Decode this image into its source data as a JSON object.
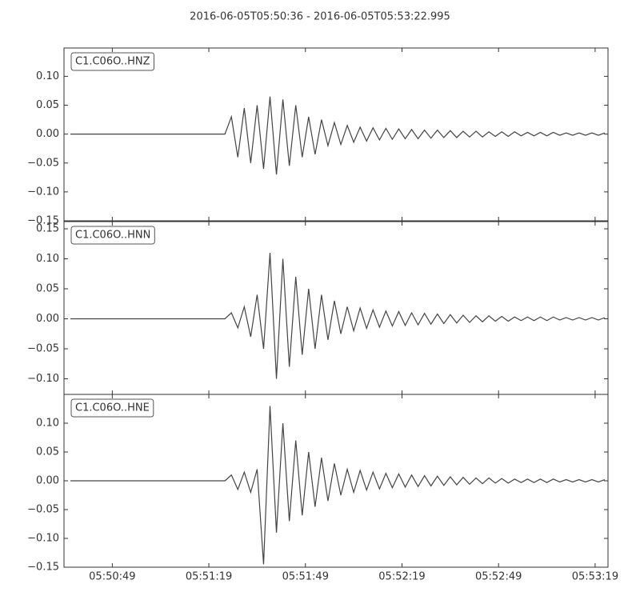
{
  "chart_data": {
    "type": "line",
    "title": "2016-06-05T05:50:36  -  2016-06-05T05:53:22.995",
    "xlim": [
      "05:50:34",
      "05:53:23"
    ],
    "xticks": [
      "05:50:49",
      "05:51:19",
      "05:51:49",
      "05:52:19",
      "05:52:49",
      "05:53:19"
    ],
    "x": [
      "05:50:36",
      "05:50:38",
      "05:50:40",
      "05:50:42",
      "05:50:44",
      "05:50:46",
      "05:50:48",
      "05:50:50",
      "05:50:52",
      "05:50:54",
      "05:50:56",
      "05:50:58",
      "05:51:00",
      "05:51:02",
      "05:51:04",
      "05:51:06",
      "05:51:08",
      "05:51:10",
      "05:51:12",
      "05:51:14",
      "05:51:16",
      "05:51:18",
      "05:51:20",
      "05:51:22",
      "05:51:24",
      "05:51:26",
      "05:51:28",
      "05:51:30",
      "05:51:32",
      "05:51:34",
      "05:51:36",
      "05:51:38",
      "05:51:40",
      "05:51:42",
      "05:51:44",
      "05:51:46",
      "05:51:48",
      "05:51:50",
      "05:51:52",
      "05:51:54",
      "05:51:56",
      "05:51:58",
      "05:52:00",
      "05:52:02",
      "05:52:04",
      "05:52:06",
      "05:52:08",
      "05:52:10",
      "05:52:12",
      "05:52:14",
      "05:52:16",
      "05:52:18",
      "05:52:20",
      "05:52:22",
      "05:52:24",
      "05:52:26",
      "05:52:28",
      "05:52:30",
      "05:52:32",
      "05:52:34",
      "05:52:36",
      "05:52:38",
      "05:52:40",
      "05:52:42",
      "05:52:44",
      "05:52:46",
      "05:52:48",
      "05:52:50",
      "05:52:52",
      "05:52:54",
      "05:52:56",
      "05:52:58",
      "05:53:00",
      "05:53:02",
      "05:53:04",
      "05:53:06",
      "05:53:08",
      "05:53:10",
      "05:53:12",
      "05:53:14",
      "05:53:16",
      "05:53:18",
      "05:53:20",
      "05:53:22"
    ],
    "series": [
      {
        "name": "C1.C06O..HNZ",
        "color": "#444444",
        "ylim": [
          -0.15,
          0.149
        ],
        "yticks": [
          {
            "value": -0.15,
            "label": "−0.15"
          },
          {
            "value": -0.1,
            "label": "−0.10"
          },
          {
            "value": -0.05,
            "label": "−0.05"
          },
          {
            "value": 0,
            "label": "0.00"
          },
          {
            "value": 0.05,
            "label": "0.05"
          },
          {
            "value": 0.1,
            "label": "0.10"
          }
        ],
        "values": [
          0,
          0,
          0,
          0,
          0,
          0,
          0,
          0,
          0,
          0,
          0,
          0,
          0,
          0,
          0,
          0,
          0,
          0,
          0,
          0,
          0,
          0,
          0,
          0,
          0,
          0.03,
          -0.04,
          0.045,
          -0.05,
          0.05,
          -0.06,
          0.065,
          -0.07,
          0.06,
          -0.055,
          0.05,
          -0.04,
          0.03,
          -0.035,
          0.025,
          -0.02,
          0.02,
          -0.018,
          0.015,
          -0.014,
          0.012,
          -0.012,
          0.011,
          -0.01,
          0.01,
          -0.009,
          0.009,
          -0.008,
          0.008,
          -0.008,
          0.007,
          -0.007,
          0.007,
          -0.006,
          0.006,
          -0.006,
          0.005,
          -0.005,
          0.005,
          -0.005,
          0.004,
          -0.004,
          0.004,
          -0.004,
          0.004,
          -0.003,
          0.003,
          -0.003,
          0.003,
          -0.003,
          0.003,
          -0.002,
          0.002,
          -0.002,
          0.002,
          -0.002,
          0.002,
          -0.002,
          0.002
        ]
      },
      {
        "name": "C1.C06O..HNN",
        "color": "#444444",
        "ylim": [
          -0.126,
          0.162
        ],
        "yticks": [
          {
            "value": -0.1,
            "label": "−0.10"
          },
          {
            "value": -0.05,
            "label": "−0.05"
          },
          {
            "value": 0,
            "label": "0.00"
          },
          {
            "value": 0.05,
            "label": "0.05"
          },
          {
            "value": 0.1,
            "label": "0.10"
          },
          {
            "value": 0.15,
            "label": "0.15"
          }
        ],
        "values": [
          0,
          0,
          0,
          0,
          0,
          0,
          0,
          0,
          0,
          0,
          0,
          0,
          0,
          0,
          0,
          0,
          0,
          0,
          0,
          0,
          0,
          0,
          0,
          0,
          0,
          0.01,
          -0.015,
          0.02,
          -0.03,
          0.04,
          -0.05,
          0.11,
          -0.1,
          0.1,
          -0.08,
          0.07,
          -0.06,
          0.05,
          -0.05,
          0.04,
          -0.035,
          0.03,
          -0.025,
          0.02,
          -0.02,
          0.018,
          -0.016,
          0.015,
          -0.014,
          0.013,
          -0.012,
          0.012,
          -0.011,
          0.01,
          -0.01,
          0.009,
          -0.009,
          0.008,
          -0.008,
          0.007,
          -0.007,
          0.006,
          -0.006,
          0.005,
          -0.005,
          0.005,
          -0.004,
          0.004,
          -0.004,
          0.003,
          -0.003,
          0.003,
          -0.003,
          0.003,
          -0.003,
          0.003,
          -0.002,
          0.002,
          -0.002,
          0.002,
          -0.002,
          0.002,
          -0.002,
          0.002
        ]
      },
      {
        "name": "C1.C06O..HNE",
        "color": "#444444",
        "ylim": [
          -0.15,
          0.15
        ],
        "yticks": [
          {
            "value": -0.15,
            "label": "−0.15"
          },
          {
            "value": -0.1,
            "label": "−0.10"
          },
          {
            "value": -0.05,
            "label": "−0.05"
          },
          {
            "value": 0,
            "label": "0.00"
          },
          {
            "value": 0.05,
            "label": "0.05"
          },
          {
            "value": 0.1,
            "label": "0.10"
          }
        ],
        "values": [
          0,
          0,
          0,
          0,
          0,
          0,
          0,
          0,
          0,
          0,
          0,
          0,
          0,
          0,
          0,
          0,
          0,
          0,
          0,
          0,
          0,
          0,
          0,
          0,
          0,
          0.01,
          -0.015,
          0.015,
          -0.02,
          0.02,
          -0.145,
          0.13,
          -0.09,
          0.1,
          -0.07,
          0.07,
          -0.06,
          0.05,
          -0.045,
          0.04,
          -0.035,
          0.03,
          -0.025,
          0.02,
          -0.02,
          0.018,
          -0.016,
          0.015,
          -0.014,
          0.013,
          -0.012,
          0.012,
          -0.011,
          0.01,
          -0.01,
          0.009,
          -0.009,
          0.008,
          -0.008,
          0.007,
          -0.007,
          0.006,
          -0.006,
          0.005,
          -0.005,
          0.005,
          -0.004,
          0.004,
          -0.004,
          0.003,
          -0.003,
          0.003,
          -0.003,
          0.003,
          -0.003,
          0.003,
          -0.002,
          0.002,
          -0.002,
          0.002,
          -0.002,
          0.002,
          -0.002,
          0.002
        ]
      }
    ]
  }
}
